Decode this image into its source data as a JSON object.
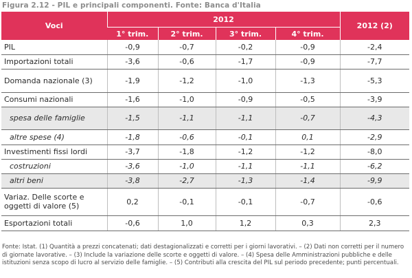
{
  "figure_title": "Figura 2.12 - PIL e principali componenti. Fonte: Banca d'Italia",
  "header": {
    "voci": "Voci",
    "year": "2012",
    "year_total": "2012 (2)",
    "quarters": [
      "1° trim.",
      "2° trim.",
      "3° trim.",
      "4° trim."
    ]
  },
  "rows": [
    {
      "label": "PIL",
      "values": [
        "-0,9",
        "-0,7",
        "-0,2",
        "-0,9",
        "-2,4"
      ]
    },
    {
      "label": "Importazioni totali",
      "values": [
        "-3,6",
        "-0,6",
        "-1,7",
        "-0,9",
        "-7,7"
      ]
    },
    {
      "label": "Domanda nazionale (3)",
      "values": [
        "-1,9",
        "-1,2",
        "-1,0",
        "-1,3",
        "-5,3"
      ]
    },
    {
      "label": "Consumi nazionali",
      "values": [
        "-1,6",
        "-1,0",
        "-0,9",
        "-0,5",
        "-3,9"
      ]
    },
    {
      "label": "spesa delle famiglie",
      "values": [
        "-1,5",
        "-1,1",
        "-1,1",
        "-0,7",
        "-4,3"
      ]
    },
    {
      "label": "altre spese (4)",
      "values": [
        "-1,8",
        "-0,6",
        "-0,1",
        "0,1",
        "-2,9"
      ]
    },
    {
      "label": "Investimenti fissi lordi",
      "values": [
        "-3,7",
        "-1,8",
        "-1,2",
        "-1,2",
        "-8,0"
      ]
    },
    {
      "label": "costruzioni",
      "values": [
        "-3,6",
        "-1,0",
        "-1,1",
        "-1,1",
        "-6,2"
      ]
    },
    {
      "label": "altri beni",
      "values": [
        "-3,8",
        "-2,7",
        "-1,3",
        "-1,4",
        "-9,9"
      ]
    },
    {
      "label": "Variaz. Delle scorte e oggetti di valore (5)",
      "values": [
        "0,2",
        "-0,1",
        "-0,1",
        "-0,7",
        "-0,6"
      ]
    },
    {
      "label": "Esportazioni totali",
      "values": [
        "-0,6",
        "1,0",
        "1,2",
        "0,3",
        "2,3"
      ]
    }
  ],
  "notes": "Fonte: Istat. (1) Quantità a prezzi concatenati; dati destagionalizzati e corretti per i giorni lavorativi. – (2) Dati non corretti per il numero di giornate lavorative. – (3) Include la variazione delle scorte e oggetti di valore. – (4) Spesa delle Amministrazioni pubbliche e delle istituzioni senza scopo di lucro al servizio delle famiglie. – (5) Contributi alla crescita del PIL sul periodo precedente; punti percentuali.",
  "colors": {
    "header_bg": "#e0335a",
    "shade_row": "#e8e8e8",
    "title": "#8c8c8c"
  }
}
